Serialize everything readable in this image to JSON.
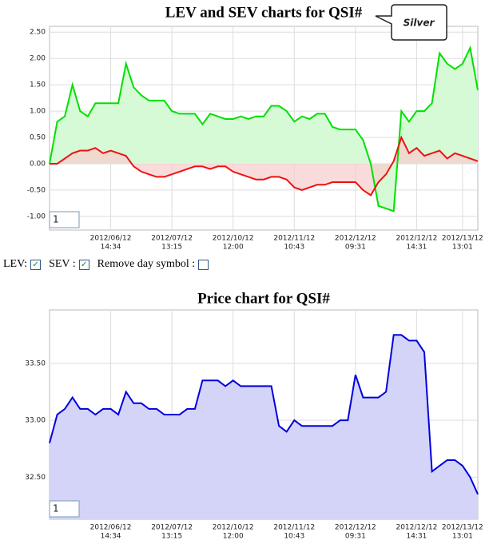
{
  "chart_data": [
    {
      "type": "line",
      "title": "LEV and SEV charts for QSI#",
      "callout": "Silver",
      "input_value": "1",
      "categories": [
        null,
        null,
        null,
        null,
        null,
        null,
        null,
        null,
        [
          "2012/06/12",
          "14:34"
        ],
        null,
        null,
        null,
        null,
        null,
        null,
        null,
        [
          "2012/07/12",
          "13:15"
        ],
        null,
        null,
        null,
        null,
        null,
        null,
        null,
        [
          "2012/10/12",
          "12:00"
        ],
        null,
        null,
        null,
        null,
        null,
        null,
        null,
        [
          "2012/11/12",
          "10:43"
        ],
        null,
        null,
        null,
        null,
        null,
        null,
        null,
        [
          "2012/12/12",
          "09:31"
        ],
        null,
        null,
        null,
        null,
        null,
        null,
        null,
        [
          "2012/12/12",
          "14:31"
        ],
        null,
        null,
        null,
        null,
        null,
        [
          "2012/13/12",
          "13:01"
        ],
        null,
        null
      ],
      "series": [
        {
          "name": "LEV",
          "color": "#00e000",
          "area_color": "#d6fad6",
          "values": [
            0.0,
            0.8,
            0.9,
            1.5,
            1.0,
            0.9,
            1.15,
            1.15,
            1.15,
            1.15,
            1.9,
            1.45,
            1.3,
            1.2,
            1.2,
            1.2,
            1.0,
            0.95,
            0.95,
            0.95,
            0.75,
            0.95,
            0.9,
            0.85,
            0.85,
            0.9,
            0.85,
            0.9,
            0.9,
            1.1,
            1.1,
            1.0,
            0.8,
            0.9,
            0.85,
            0.95,
            0.95,
            0.7,
            0.65,
            0.65,
            0.65,
            0.45,
            0.0,
            -0.8,
            -0.85,
            -0.9,
            1.0,
            0.8,
            1.0,
            1.0,
            1.15,
            2.1,
            1.9,
            1.8,
            1.9,
            2.2,
            1.4
          ]
        },
        {
          "name": "SEV",
          "color": "#ee1111",
          "area_color": "#f8cccc",
          "values": [
            0.0,
            0.0,
            0.1,
            0.2,
            0.25,
            0.25,
            0.3,
            0.2,
            0.25,
            0.2,
            0.15,
            -0.05,
            -0.15,
            -0.2,
            -0.25,
            -0.25,
            -0.2,
            -0.15,
            -0.1,
            -0.05,
            -0.05,
            -0.1,
            -0.05,
            -0.05,
            -0.15,
            -0.2,
            -0.25,
            -0.3,
            -0.3,
            -0.25,
            -0.25,
            -0.3,
            -0.45,
            -0.5,
            -0.45,
            -0.4,
            -0.4,
            -0.35,
            -0.35,
            -0.35,
            -0.35,
            -0.5,
            -0.6,
            -0.35,
            -0.2,
            0.05,
            0.5,
            0.2,
            0.3,
            0.15,
            0.2,
            0.25,
            0.1,
            0.2,
            0.15,
            0.1,
            0.05
          ]
        }
      ],
      "ylim": [
        -1.26,
        2.61
      ],
      "yticks": [
        {
          "value": -1,
          "label": "-1.00"
        },
        {
          "value": -0.5,
          "label": "-0.50"
        },
        {
          "value": 0,
          "label": "0.00"
        },
        {
          "value": 0.5,
          "label": "0.50"
        },
        {
          "value": 1,
          "label": "1.00"
        },
        {
          "value": 1.5,
          "label": "1.50"
        },
        {
          "value": 2,
          "label": "2.00"
        },
        {
          "value": 2.5,
          "label": "2.50"
        }
      ],
      "grid": true
    },
    {
      "type": "line",
      "title": "Price chart for QSI#",
      "input_value": "1",
      "categories": [
        null,
        null,
        null,
        null,
        null,
        null,
        null,
        null,
        [
          "2012/06/12",
          "14:34"
        ],
        null,
        null,
        null,
        null,
        null,
        null,
        null,
        [
          "2012/07/12",
          "13:15"
        ],
        null,
        null,
        null,
        null,
        null,
        null,
        null,
        [
          "2012/10/12",
          "12:00"
        ],
        null,
        null,
        null,
        null,
        null,
        null,
        null,
        [
          "2012/11/12",
          "10:43"
        ],
        null,
        null,
        null,
        null,
        null,
        null,
        null,
        [
          "2012/12/12",
          "09:31"
        ],
        null,
        null,
        null,
        null,
        null,
        null,
        null,
        [
          "2012/12/12",
          "14:31"
        ],
        null,
        null,
        null,
        null,
        null,
        [
          "2012/13/12",
          "13:01"
        ],
        null,
        null
      ],
      "series": [
        {
          "name": "Price",
          "color": "#0000dd",
          "area_color": "#d4d4f8",
          "values": [
            32.8,
            33.05,
            33.1,
            33.2,
            33.1,
            33.1,
            33.05,
            33.1,
            33.1,
            33.05,
            33.25,
            33.15,
            33.15,
            33.1,
            33.1,
            33.05,
            33.05,
            33.05,
            33.1,
            33.1,
            33.35,
            33.35,
            33.35,
            33.3,
            33.35,
            33.3,
            33.3,
            33.3,
            33.3,
            33.3,
            32.95,
            32.9,
            33.0,
            32.95,
            32.95,
            32.95,
            32.95,
            32.95,
            33.0,
            33.0,
            33.4,
            33.2,
            33.2,
            33.2,
            33.25,
            33.75,
            33.75,
            33.7,
            33.7,
            33.6,
            32.55,
            32.6,
            32.65,
            32.65,
            32.6,
            32.5,
            32.35
          ]
        }
      ],
      "ylim": [
        32.13,
        33.97
      ],
      "yticks": [
        {
          "value": 32.5,
          "label": "32.50"
        },
        {
          "value": 33,
          "label": "33.00"
        },
        {
          "value": 33.5,
          "label": "33.50"
        }
      ],
      "grid": true
    }
  ],
  "controls": {
    "lev_label": "LEV:",
    "sev_label": "SEV :",
    "remove_label": "Remove day symbol :"
  }
}
